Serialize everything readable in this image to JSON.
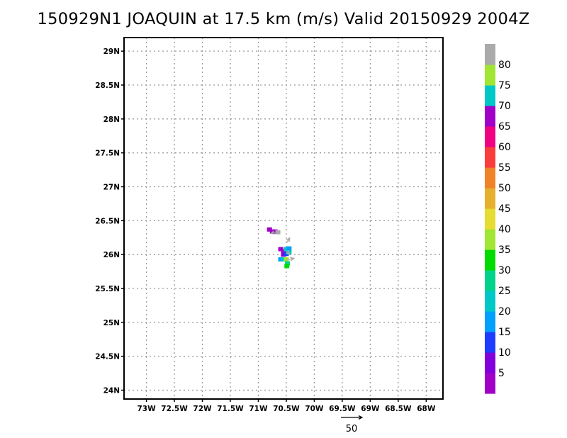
{
  "title": "150929N1 JOAQUIN at 17.5 km (m/s) Valid 20150929 2004Z",
  "chart_data": {
    "type": "heatmap",
    "title": "150929N1 JOAQUIN at 17.5 km (m/s) Valid 20150929 2004Z",
    "xlabel": "",
    "ylabel": "",
    "xlim": [
      -73.4,
      -67.7
    ],
    "ylim": [
      23.87,
      29.2
    ],
    "x_ticks": [
      -73,
      -72.5,
      -72,
      -71.5,
      -71,
      -70.5,
      -70,
      -69.5,
      -69,
      -68.5,
      -68
    ],
    "x_tick_labels": [
      "73W",
      "72.5W",
      "72W",
      "71.5W",
      "71W",
      "70.5W",
      "70W",
      "69.5W",
      "69W",
      "68.5W",
      "68W"
    ],
    "y_ticks": [
      24,
      24.5,
      25,
      25.5,
      26,
      26.5,
      27,
      27.5,
      28,
      28.5,
      29
    ],
    "y_tick_labels": [
      "24N",
      "24.5N",
      "25N",
      "25.5N",
      "26N",
      "26.5N",
      "27N",
      "27.5N",
      "28N",
      "28.5N",
      "29N"
    ],
    "grid": true,
    "colorbar": {
      "levels": [
        0,
        5,
        10,
        15,
        20,
        25,
        30,
        35,
        40,
        45,
        50,
        55,
        60,
        65,
        70,
        75,
        80,
        85
      ],
      "labels": [
        "5",
        "10",
        "15",
        "20",
        "25",
        "30",
        "35",
        "40",
        "45",
        "50",
        "55",
        "60",
        "65",
        "70",
        "75",
        "80"
      ],
      "colors": [
        "#a000c8",
        "#8200dc",
        "#1e3cff",
        "#00a0ff",
        "#00c8c8",
        "#00d28c",
        "#00dc00",
        "#a0e632",
        "#e6dc32",
        "#e6af2d",
        "#f08228",
        "#fa3c3c",
        "#f00082",
        "#a000c8",
        "#00c8c8",
        "#a0e632",
        "#aaaaaa"
      ]
    },
    "cells": [
      {
        "lon": -70.8,
        "lat": 26.37,
        "value": 2
      },
      {
        "lon": -70.75,
        "lat": 26.34,
        "value": 3
      },
      {
        "lon": -70.7,
        "lat": 26.34,
        "value": 2
      },
      {
        "lon": -70.65,
        "lat": 26.33,
        "value": 84
      },
      {
        "lon": -70.6,
        "lat": 26.08,
        "value": 3
      },
      {
        "lon": -70.55,
        "lat": 26.05,
        "value": 2
      },
      {
        "lon": -70.5,
        "lat": 26.08,
        "value": 22
      },
      {
        "lon": -70.45,
        "lat": 26.09,
        "value": 18
      },
      {
        "lon": -70.55,
        "lat": 26.0,
        "value": 8
      },
      {
        "lon": -70.5,
        "lat": 26.01,
        "value": 12
      },
      {
        "lon": -70.45,
        "lat": 26.03,
        "value": 21
      },
      {
        "lon": -70.6,
        "lat": 25.93,
        "value": 17
      },
      {
        "lon": -70.55,
        "lat": 25.93,
        "value": 22
      },
      {
        "lon": -70.5,
        "lat": 25.93,
        "value": 37
      },
      {
        "lon": -70.48,
        "lat": 25.87,
        "value": 28
      },
      {
        "lon": -70.49,
        "lat": 25.83,
        "value": 31
      }
    ],
    "vectors": [
      {
        "lon": -70.7,
        "lat": 26.33,
        "u": -10,
        "v": -3
      },
      {
        "lon": -70.5,
        "lat": 26.17,
        "u": 8,
        "v": 12
      },
      {
        "lon": -70.5,
        "lat": 26.05,
        "u": 8,
        "v": -6
      },
      {
        "lon": -70.5,
        "lat": 25.92,
        "u": 18,
        "v": 4
      }
    ],
    "reference_vector": {
      "label": "50",
      "magnitude": 50
    }
  }
}
